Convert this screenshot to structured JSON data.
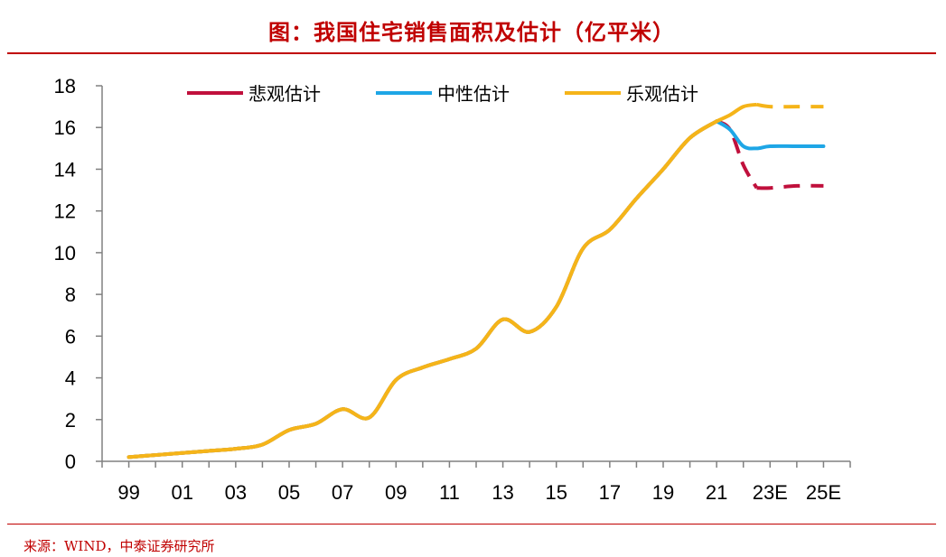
{
  "title": "图：我国住宅销售面积及估计（亿平米）",
  "source": "来源：WIND，中泰证券研究所",
  "chart_data": {
    "type": "line",
    "categories": [
      "99",
      "01",
      "03",
      "05",
      "07",
      "09",
      "11",
      "13",
      "15",
      "17",
      "19",
      "21",
      "23E",
      "25E"
    ],
    "ylim": [
      0,
      18
    ],
    "yticks": [
      0,
      2,
      4,
      6,
      8,
      10,
      12,
      14,
      16,
      18
    ],
    "xlabel": "",
    "ylabel": "",
    "grid": false,
    "legend_position": "top",
    "historical": {
      "x": [
        1999,
        2000,
        2001,
        2002,
        2003,
        2004,
        2005,
        2006,
        2007,
        2008,
        2009,
        2010,
        2011,
        2012,
        2013,
        2014,
        2015,
        2016,
        2017,
        2018,
        2019,
        2020,
        2021
      ],
      "y": [
        0.2,
        0.3,
        0.4,
        0.5,
        0.6,
        0.8,
        1.5,
        1.8,
        2.5,
        2.1,
        3.9,
        4.5,
        4.9,
        5.4,
        6.8,
        6.2,
        7.4,
        10.2,
        11.1,
        12.6,
        14.0,
        15.5,
        16.3
      ]
    },
    "series": [
      {
        "name": "悲观估计",
        "color": "#c0103c",
        "x": [
          2021,
          2021.5,
          2022,
          2022.5,
          2023,
          2024,
          2025
        ],
        "y": [
          16.3,
          15.9,
          14.2,
          13.1,
          13.1,
          13.2,
          13.2
        ]
      },
      {
        "name": "中性估计",
        "color": "#1ea6e6",
        "x": [
          2021,
          2021.5,
          2022,
          2022.5,
          2023,
          2024,
          2025
        ],
        "y": [
          16.3,
          15.9,
          15.1,
          15.0,
          15.1,
          15.1,
          15.1
        ]
      },
      {
        "name": "乐观估计",
        "color": "#f5b419",
        "x": [
          2021,
          2021.5,
          2022,
          2022.5,
          2023,
          2024,
          2025
        ],
        "y": [
          16.3,
          16.6,
          17.0,
          17.1,
          17.0,
          17.0,
          17.0
        ]
      }
    ]
  }
}
